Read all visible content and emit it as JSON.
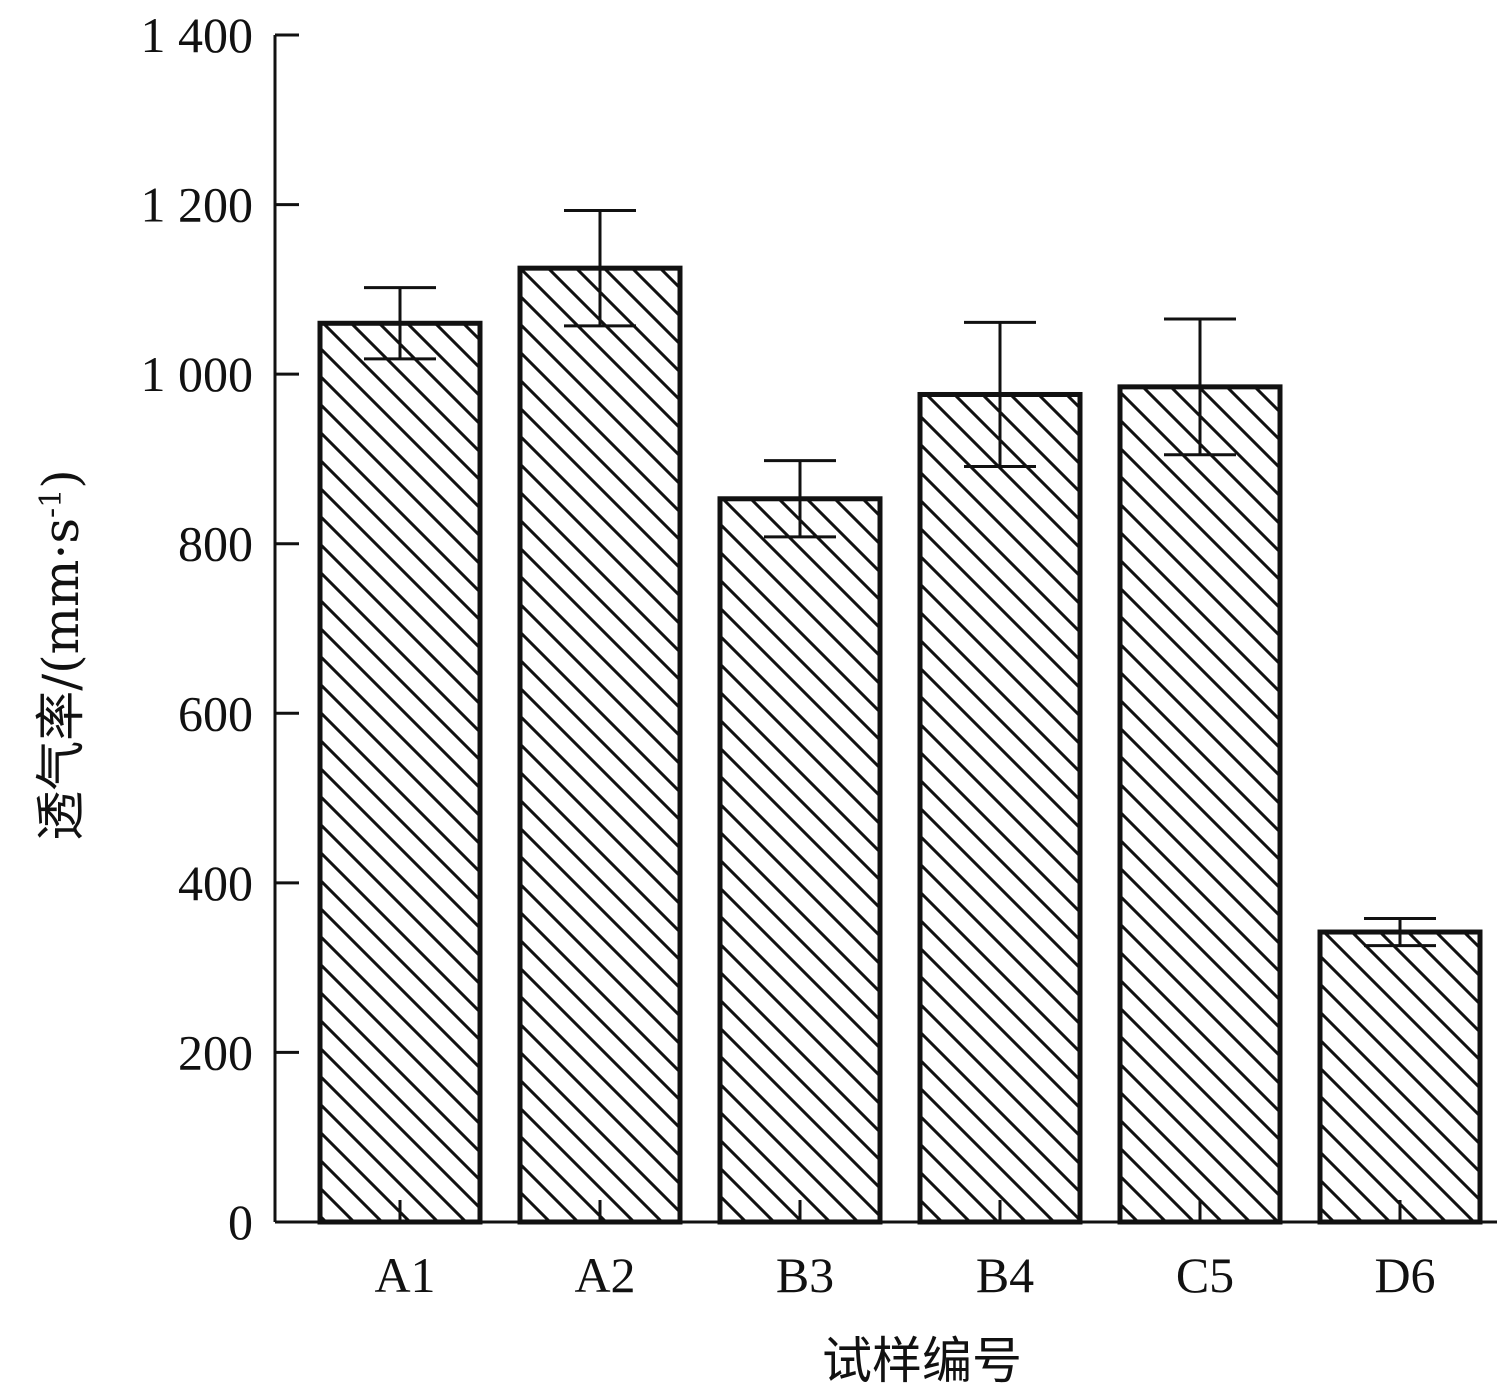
{
  "chart_data": {
    "type": "bar",
    "categories": [
      "A1",
      "A2",
      "B3",
      "B4",
      "C5",
      "D6"
    ],
    "values": [
      1060,
      1125,
      853,
      976,
      985,
      342
    ],
    "error": [
      42,
      68,
      45,
      85,
      80,
      16
    ],
    "xlabel": "试样编号",
    "ylabel": {
      "prefix": "透气率/(mm·s",
      "superscript": "-1",
      "suffix": ")"
    },
    "ylim": [
      0,
      1400
    ],
    "yticks": [
      0,
      200,
      400,
      600,
      800,
      1000,
      1200,
      1400
    ],
    "ytick_labels": [
      "0",
      "200",
      "400",
      "600",
      "800",
      "1 000",
      "1 200",
      "1 400"
    ],
    "grid": false,
    "legend": "none",
    "pattern": "diagonal-hatch",
    "colors": {
      "bar_stroke": "#111111",
      "bar_fill": "#ffffff",
      "axis": "#111111"
    }
  }
}
